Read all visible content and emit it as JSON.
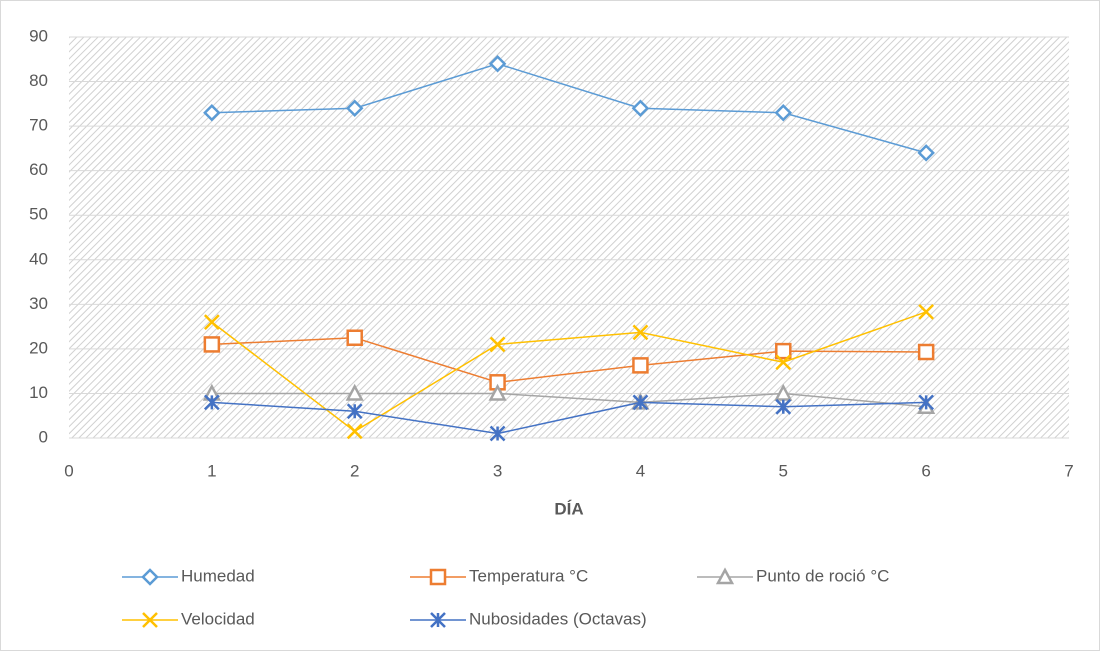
{
  "chart_data": {
    "type": "line",
    "x_label": "DÍA",
    "x": [
      1,
      2,
      3,
      4,
      5,
      6
    ],
    "xlim": [
      0,
      7
    ],
    "xticks": [
      0,
      1,
      2,
      3,
      4,
      5,
      6,
      7
    ],
    "ylim": [
      0,
      90
    ],
    "yticks": [
      0,
      10,
      20,
      30,
      40,
      50,
      60,
      70,
      80,
      90
    ],
    "grid": true,
    "legend": "bottom",
    "series": [
      {
        "name": "Humedad",
        "color": "#5b9bd5",
        "marker": "diamond",
        "values": [
          73,
          74,
          84,
          74,
          73,
          64
        ]
      },
      {
        "name": "Temperatura °C",
        "color": "#ed7d31",
        "marker": "square",
        "values": [
          21,
          22.5,
          12.5,
          16.3,
          19.5,
          19.3
        ]
      },
      {
        "name": "Punto de roció °C",
        "color": "#a5a5a5",
        "marker": "triangle",
        "values": [
          10,
          10,
          10,
          8,
          10,
          7
        ]
      },
      {
        "name": "Velocidad",
        "color": "#ffc000",
        "marker": "x",
        "values": [
          26,
          1.5,
          21,
          23.7,
          17,
          28.3
        ]
      },
      {
        "name": "Nubosidades (Octavas)",
        "color": "#4472c4",
        "marker": "star",
        "values": [
          8,
          6,
          1,
          8,
          7,
          8
        ]
      }
    ]
  }
}
